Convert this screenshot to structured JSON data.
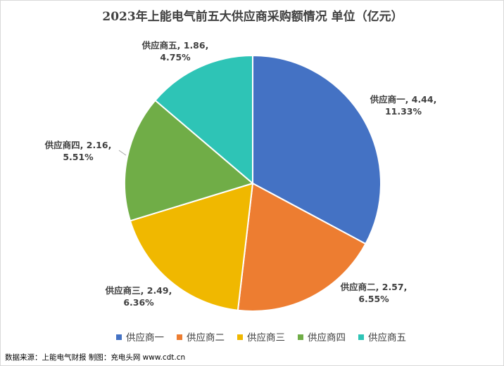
{
  "chart_data": {
    "type": "pie",
    "title": "2023年上能电气前五大供应商采购额情况  单位（亿元）",
    "categories": [
      "供应商一",
      "供应商二",
      "供应商三",
      "供应商四",
      "供应商五"
    ],
    "values": [
      4.44,
      2.57,
      2.49,
      2.16,
      1.86
    ],
    "percent_labels": [
      "11.33%",
      "6.55%",
      "6.36%",
      "5.51%",
      "4.75%"
    ],
    "colors": [
      "#4472C4",
      "#ED7D31",
      "#F0B800",
      "#70AD47",
      "#2EC4B6"
    ],
    "legend_position": "bottom"
  },
  "footer": {
    "source": "数据来源：上能电气财报",
    "producer": "制图：充电头网 www.cdt.cn"
  }
}
